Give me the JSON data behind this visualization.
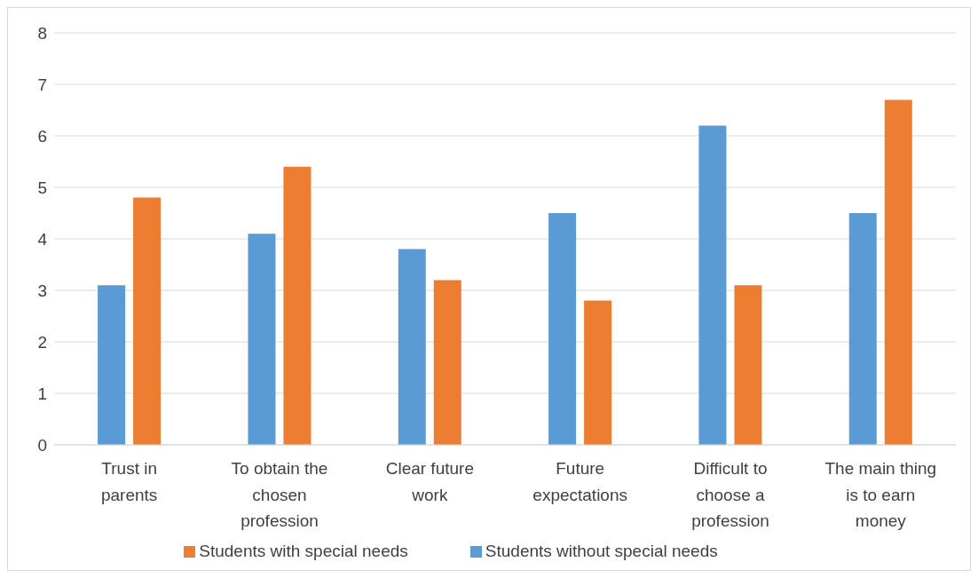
{
  "chart_data": {
    "type": "bar",
    "categories": [
      "Trust in parents",
      "To obtain the chosen profession",
      "Clear future work",
      "Future expectations",
      "Difficult to choose a profession",
      "The main thing is to earn money"
    ],
    "series": [
      {
        "name": "Students without special needs",
        "color": "#5b9bd5",
        "values": [
          3.1,
          4.1,
          3.8,
          4.5,
          6.2,
          4.5
        ]
      },
      {
        "name": "Students with special needs",
        "color": "#ed7d31",
        "values": [
          4.8,
          5.4,
          3.2,
          2.8,
          3.1,
          6.7
        ]
      }
    ],
    "ylim": [
      0,
      8
    ],
    "yticks": [
      0,
      1,
      2,
      3,
      4,
      5,
      6,
      7,
      8
    ],
    "grid": "y",
    "legend": "bottom"
  }
}
